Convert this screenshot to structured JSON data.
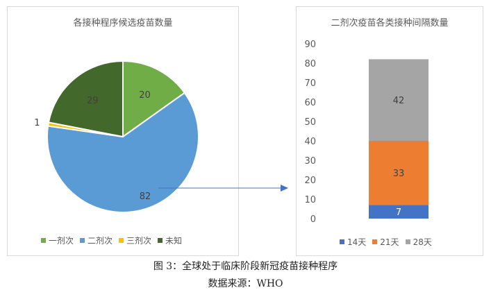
{
  "caption": "图 3：全球处于临床阶段新冠疫苗接种程序",
  "source": "数据来源：WHO",
  "chart_data": [
    {
      "type": "pie",
      "title": "各接种程序候选疫苗数量",
      "categories": [
        "一剂次",
        "二剂次",
        "三剂次",
        "未知"
      ],
      "values": [
        20,
        82,
        1,
        29
      ],
      "colors": [
        "#70ad47",
        "#5b9bd5",
        "#ffc000",
        "#43682b"
      ],
      "legend": "bottom",
      "data_labels": true
    },
    {
      "type": "bar",
      "stacked": true,
      "title": "二剂次疫苗各类接种间隔数量",
      "categories": [
        ""
      ],
      "series": [
        {
          "name": "14天",
          "values": [
            7
          ],
          "color": "#4472c4"
        },
        {
          "name": "21天",
          "values": [
            33
          ],
          "color": "#ed7d31"
        },
        {
          "name": "28天",
          "values": [
            42
          ],
          "color": "#a5a5a5"
        }
      ],
      "ylim": [
        0,
        90
      ],
      "yticks": [
        0,
        10,
        20,
        30,
        40,
        50,
        60,
        70,
        80,
        90
      ],
      "grid": false,
      "legend": "bottom",
      "data_labels": true
    }
  ],
  "connector": {
    "color": "#4472c4"
  }
}
